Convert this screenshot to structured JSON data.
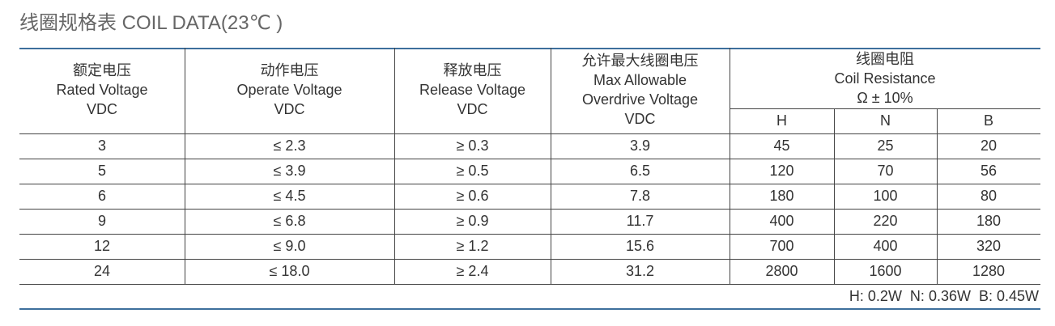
{
  "title": "线圈规格表 COIL DATA(23℃ )",
  "table": {
    "columns": [
      {
        "lines": [
          "额定电压",
          "Rated Voltage",
          "VDC"
        ]
      },
      {
        "lines": [
          "动作电压",
          "Operate Voltage",
          "VDC"
        ]
      },
      {
        "lines": [
          "释放电压",
          "Release Voltage",
          "VDC"
        ]
      },
      {
        "lines": [
          "允许最大线圈电压",
          "Max Allowable",
          "Overdrive Voltage",
          "VDC"
        ]
      },
      {
        "lines": [
          "线圈电阻",
          "Coil Resistance",
          "Ω ± 10%"
        ],
        "sub": [
          "H",
          "N",
          "B"
        ]
      }
    ],
    "rows": [
      [
        3,
        "≤ 2.3",
        "≥ 0.3",
        3.9,
        45,
        25,
        20
      ],
      [
        5,
        "≤ 3.9",
        "≥ 0.5",
        6.5,
        120,
        70,
        56
      ],
      [
        6,
        "≤ 4.5",
        "≥ 0.6",
        7.8,
        180,
        100,
        80
      ],
      [
        9,
        "≤ 6.8",
        "≥ 0.9",
        11.7,
        400,
        220,
        180
      ],
      [
        12,
        "≤ 9.0",
        "≥ 1.2",
        15.6,
        700,
        400,
        320
      ],
      [
        24,
        "≤ 18.0",
        "≥ 2.4",
        31.2,
        2800,
        1600,
        1280
      ]
    ],
    "footnote": "H: 0.2W  N: 0.36W  B: 0.45W"
  }
}
